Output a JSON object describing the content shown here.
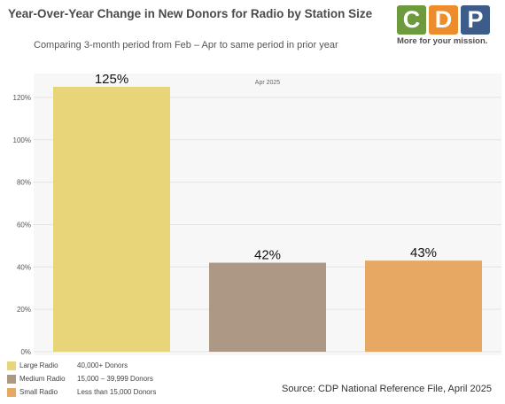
{
  "header": {
    "title": "Year-Over-Year Change in New Donors for Radio by Station Size",
    "subtitle": "Comparing 3-month period from Feb – Apr to same period in prior year"
  },
  "logo": {
    "letters": [
      "C",
      "D",
      "P"
    ],
    "colors": [
      "#6d9a3c",
      "#ed8c2a",
      "#3e5c8a"
    ],
    "tagline": "More for your mission."
  },
  "chart_data": {
    "type": "bar",
    "title": "Year-Over-Year Change in New Donors for Radio by Station Size",
    "x_label": "Apr 2025",
    "categories": [
      "Large Radio",
      "Medium Radio",
      "Small Radio"
    ],
    "values": [
      125,
      42,
      43
    ],
    "value_labels": [
      "125%",
      "42%",
      "43%"
    ],
    "colors": [
      "#e8d57a",
      "#ad9886",
      "#e6a862"
    ],
    "ylim": [
      0,
      130
    ],
    "yticks": [
      0,
      20,
      40,
      60,
      80,
      100,
      120
    ],
    "ytick_labels": [
      "0%",
      "20%",
      "40%",
      "60%",
      "80%",
      "100%",
      "120%"
    ],
    "grid": true,
    "legend_position": "bottom-left"
  },
  "legend": {
    "items": [
      {
        "name": "Large Radio",
        "desc": "40,000+ Donors",
        "color": "#e8d57a"
      },
      {
        "name": "Medium Radio",
        "desc": "15,000 – 39,999 Donors",
        "color": "#ad9886"
      },
      {
        "name": "Small Radio",
        "desc": "Less than 15,000 Donors",
        "color": "#e6a862"
      }
    ]
  },
  "source": "Source: CDP National Reference File, April 2025"
}
